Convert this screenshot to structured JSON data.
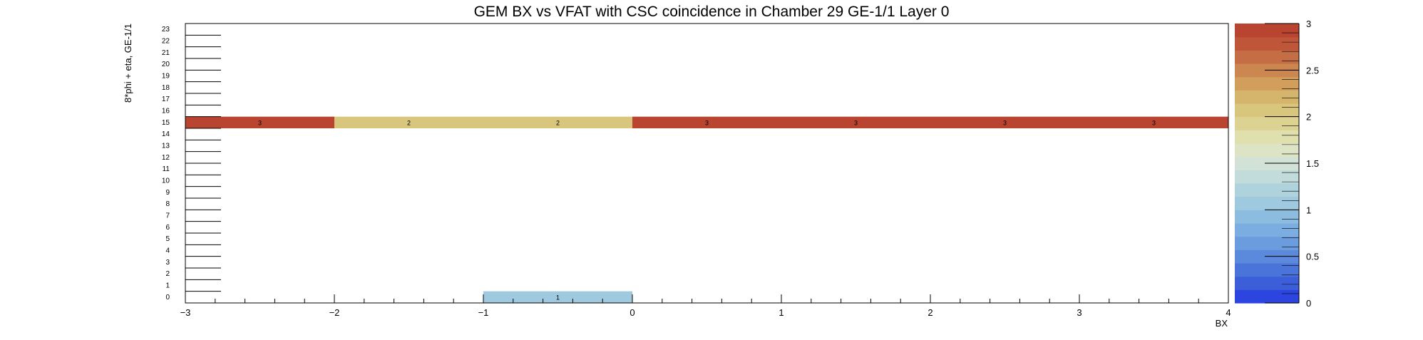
{
  "chart_data": {
    "type": "heatmap",
    "title": "GEM BX vs VFAT with CSC coincidence in Chamber 29 GE-1/1 Layer 0",
    "xlabel": "BX",
    "ylabel": "8*phi + eta, GE-1/1",
    "xlim": [
      -3,
      4
    ],
    "ylim": [
      0,
      24
    ],
    "x_ticks": [
      -3,
      -2,
      -1,
      0,
      1,
      2,
      3,
      4
    ],
    "y_ticks": [
      0,
      1,
      2,
      3,
      4,
      5,
      6,
      7,
      8,
      9,
      10,
      11,
      12,
      13,
      14,
      15,
      16,
      17,
      18,
      19,
      20,
      21,
      22,
      23
    ],
    "zlim": [
      0,
      3
    ],
    "z_ticks": [
      0,
      0.5,
      1,
      1.5,
      2,
      2.5,
      3
    ],
    "colorbar_colors": [
      "#2c45e0",
      "#3c5ed9",
      "#4b74da",
      "#5b89dc",
      "#6b9cde",
      "#7cade0",
      "#8cbcdf",
      "#9ec9de",
      "#afd3dd",
      "#c1dcda",
      "#d2e2d6",
      "#dde4c6",
      "#e0dfae",
      "#dcd393",
      "#d9c67d",
      "#d5b46b",
      "#d29e5c",
      "#cc8650",
      "#c56e45",
      "#bf563a",
      "#b94430"
    ],
    "grid": false,
    "cells": [
      {
        "x": -3,
        "x2": -2,
        "y": 15,
        "value": 3
      },
      {
        "x": -2,
        "x2": -1,
        "y": 15,
        "value": 2
      },
      {
        "x": -1,
        "x2": 0,
        "y": 15,
        "value": 2
      },
      {
        "x": 0,
        "x2": 1,
        "y": 15,
        "value": 3
      },
      {
        "x": 1,
        "x2": 2,
        "y": 15,
        "value": 3
      },
      {
        "x": 2,
        "x2": 3,
        "y": 15,
        "value": 3
      },
      {
        "x": 3,
        "x2": 4,
        "y": 15,
        "value": 3
      },
      {
        "x": -1,
        "x2": 0,
        "y": 0,
        "value": 1
      }
    ]
  }
}
